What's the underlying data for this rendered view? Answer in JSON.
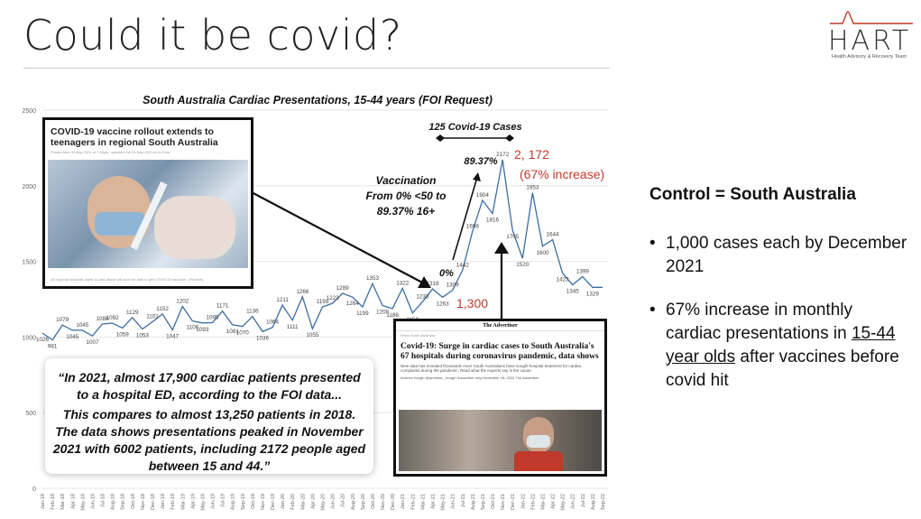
{
  "slide": {
    "title": "Could it be covid?"
  },
  "logo": {
    "word": "HART",
    "subtitle": "Health Advisory & Recovery Team"
  },
  "chart_data": {
    "type": "line",
    "title": "South Australia Cardiac Presentations, 15-44 years (FOI   Request)",
    "ylim": [
      0,
      2500
    ],
    "yticks": [
      0,
      500,
      1000,
      1500,
      2000,
      2500
    ],
    "categories": [
      "Jan-18",
      "Feb-18",
      "Mar-18",
      "Apr-18",
      "May-18",
      "Jun-18",
      "Jul-18",
      "Aug-18",
      "Sep-18",
      "Oct-18",
      "Nov-18",
      "Dec-18",
      "Jan-19",
      "Feb-19",
      "Mar-19",
      "Apr-19",
      "May-19",
      "Jun-19",
      "Jul-19",
      "Aug-19",
      "Sep-19",
      "Oct-19",
      "Nov-19",
      "Dec-19",
      "Jan-20",
      "Feb-20",
      "Mar-20",
      "Apr-20",
      "May-20",
      "Jun-20",
      "Jul-20",
      "Aug-20",
      "Sep-20",
      "Oct-20",
      "Nov-20",
      "Dec-20",
      "Jan-21",
      "Feb-21",
      "Mar-21",
      "Apr-21",
      "May-21",
      "Jun-21",
      "Jul-21",
      "Aug-21",
      "Sep-21",
      "Oct-21",
      "Nov-21",
      "Dec-21",
      "Jan-22",
      "Feb-22",
      "Mar-22",
      "Apr-22",
      "May-22",
      "Jun-22",
      "Jul-22",
      "Aug-22",
      "Sep-22"
    ],
    "values": [
      1026,
      981,
      1079,
      1045,
      1045,
      1007,
      1086,
      1092,
      1059,
      1129,
      1053,
      1101,
      1152,
      1047,
      1202,
      1106,
      1093,
      1095,
      1171,
      1081,
      1070,
      1136,
      1036,
      1064,
      1211,
      1111,
      1266,
      1055,
      1199,
      1223,
      1289,
      1264,
      1199,
      1353,
      1208,
      1188,
      1322,
      1159,
      1233,
      1318,
      1263,
      1309,
      1442,
      1698,
      1904,
      1816,
      2172,
      1705,
      1520,
      1953,
      1600,
      1644,
      1423,
      1345,
      1399,
      1329,
      1329
    ],
    "labels_shown": [
      "1026",
      "981",
      "1079",
      "1045",
      "1045",
      "1007",
      "1086",
      "1092",
      "1059",
      "1129",
      "1053",
      "1101",
      "1152",
      "1047",
      "1202",
      "1106",
      "1093",
      "1095",
      "1171",
      "1081",
      "1070",
      "1136",
      "1036",
      "1064",
      "1211",
      "1111",
      "1266",
      "1055",
      "1199",
      "1223",
      "1289",
      "1264",
      "1199",
      "1353",
      "1208",
      "1188",
      "1322",
      "1159",
      "1233",
      "1318",
      "1263",
      "1309",
      "1442",
      "1698",
      "1904",
      "1816",
      "2172",
      "1705",
      "1520",
      "1953",
      "1600",
      "1644",
      "1423",
      "1345",
      "1399",
      "1329",
      ""
    ],
    "line_color": "#3a6da3",
    "annotations": {
      "covid_cases": "125 Covid-19 Cases",
      "pct_vaccinated": "89.37%",
      "zero_pct": "0%",
      "vaccination_line1": "Vaccination",
      "vaccination_line2": "From 0% <50 to",
      "vaccination_line3": "89.37% 16+",
      "peak_value": "2, 172",
      "peak_increase": "(67% increase)",
      "baseline_value": "1,300",
      "red_color": "#c0392b"
    }
  },
  "right_panel": {
    "control": "Control = South Australia",
    "bullet1": "1,000 cases each by December 2021",
    "bullet2_pre": "67% increase in monthly cardiac presentations in ",
    "bullet2_ul": "15-44 year olds",
    "bullet2_post": " after vaccines before covid hit"
  },
  "inset_left": {
    "headline": "COVID-19 vaccine rollout extends to teenagers in regional South Australia",
    "meta": "Posted Mon 09 May 2021 at 7:30pm, updated Tue 25 May 2021 at 6:57am",
    "caption": "16 regional residents aged 16 and above will soon be able to get COVID-19 vaccines. (Reuters)"
  },
  "inset_right": {
    "masthead": "The Advertiser",
    "crumb": "News  South Australia",
    "headline": "Covid-19: Surge in cardiac cases to South Australia's 67 hospitals during coronavirus pandemic, data shows",
    "summary": "New data has revealed thousands more South Australians have sought hospital treatment for cardiac complaints during the pandemic. Read what the experts say is the cause.",
    "author": "Andrew Hough   @AndrewL_Hough   Subscriber only   December 18, 2022   The Advertiser"
  },
  "quote": {
    "line1": "“In 2021, almost 17,900 cardiac patients presented to a hospital ED, according to the FOI data...",
    "line2": "This compares to almost 13,250 patients in 2018. The data shows presentations peaked in November 2021 with 6002 patients, including 2172 people aged between 15 and 44.”"
  }
}
